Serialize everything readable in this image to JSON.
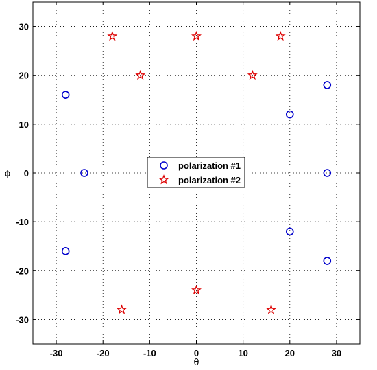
{
  "chart_data": {
    "type": "scatter",
    "title": "",
    "xlabel": "θ",
    "ylabel": "ϕ",
    "xlim": [
      -35,
      35
    ],
    "ylim": [
      -35,
      35
    ],
    "xticks": [
      -30,
      -20,
      -10,
      0,
      10,
      20,
      30
    ],
    "yticks": [
      -30,
      -20,
      -10,
      0,
      10,
      20,
      30
    ],
    "grid": true,
    "legend_position": "center",
    "series": [
      {
        "name": "polarization #1",
        "marker": "circle",
        "color": "#0000cc",
        "points": [
          {
            "x": -28,
            "y": 16
          },
          {
            "x": -24,
            "y": 0
          },
          {
            "x": -28,
            "y": -16
          },
          {
            "x": 20,
            "y": 12
          },
          {
            "x": 28,
            "y": 18
          },
          {
            "x": 28,
            "y": 0
          },
          {
            "x": 20,
            "y": -12
          },
          {
            "x": 28,
            "y": -18
          }
        ]
      },
      {
        "name": "polarization #2",
        "marker": "star",
        "color": "#dd0000",
        "points": [
          {
            "x": -18,
            "y": 28
          },
          {
            "x": 0,
            "y": 28
          },
          {
            "x": 18,
            "y": 28
          },
          {
            "x": -12,
            "y": 20
          },
          {
            "x": 12,
            "y": 20
          },
          {
            "x": 0,
            "y": -24
          },
          {
            "x": -16,
            "y": -28
          },
          {
            "x": 16,
            "y": -28
          }
        ]
      }
    ]
  }
}
